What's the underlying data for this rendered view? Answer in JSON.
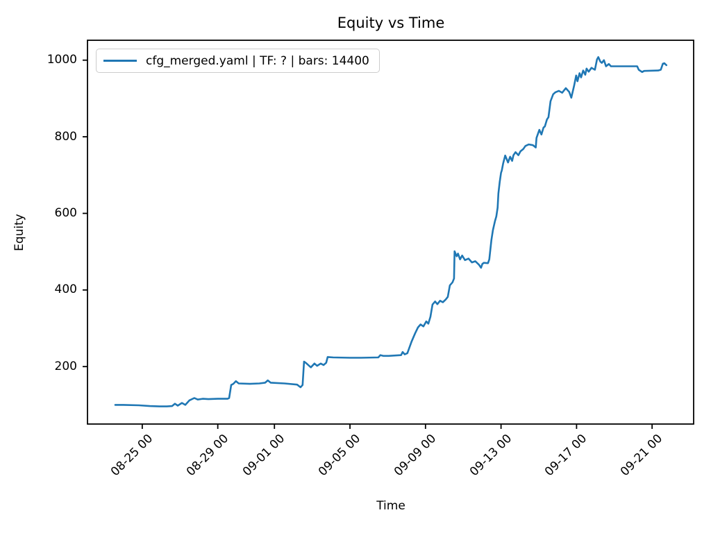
{
  "chart_data": {
    "type": "line",
    "title": "Equity vs Time",
    "xlabel": "Time",
    "ylabel": "Equity",
    "grid": false,
    "legend_position": "upper left",
    "line_color": "#1f77b4",
    "axis_color": "#000000",
    "x_unit": "days since 08-22 00:00",
    "xlim": [
      0.1,
      32.2
    ],
    "ylim": [
      50,
      1052
    ],
    "x_ticks": [
      {
        "x": 3,
        "label": "08-25 00"
      },
      {
        "x": 7,
        "label": "08-29 00"
      },
      {
        "x": 10,
        "label": "09-01 00"
      },
      {
        "x": 14,
        "label": "09-05 00"
      },
      {
        "x": 18,
        "label": "09-09 00"
      },
      {
        "x": 22,
        "label": "09-13 00"
      },
      {
        "x": 26,
        "label": "09-17 00"
      },
      {
        "x": 30,
        "label": "09-21 00"
      }
    ],
    "y_ticks": [
      {
        "v": 200,
        "label": "200"
      },
      {
        "v": 400,
        "label": "400"
      },
      {
        "v": 600,
        "label": "600"
      },
      {
        "v": 800,
        "label": "800"
      },
      {
        "v": 1000,
        "label": "1000"
      }
    ],
    "series": [
      {
        "name": "cfg_merged.yaml | TF: ? | bars: 14400",
        "points": [
          [
            1.57,
            100
          ],
          [
            2.0,
            100
          ],
          [
            2.82,
            99
          ],
          [
            3.4,
            97
          ],
          [
            3.92,
            96
          ],
          [
            4.3,
            96
          ],
          [
            4.58,
            97
          ],
          [
            4.73,
            103
          ],
          [
            4.88,
            98
          ],
          [
            5.1,
            105
          ],
          [
            5.28,
            100
          ],
          [
            5.5,
            112
          ],
          [
            5.76,
            118
          ],
          [
            5.94,
            114
          ],
          [
            6.2,
            116
          ],
          [
            6.5,
            115
          ],
          [
            7.0,
            116
          ],
          [
            7.52,
            116
          ],
          [
            7.6,
            118
          ],
          [
            7.71,
            152
          ],
          [
            7.82,
            155
          ],
          [
            7.96,
            162
          ],
          [
            8.11,
            156
          ],
          [
            8.7,
            155
          ],
          [
            9.2,
            156
          ],
          [
            9.51,
            158
          ],
          [
            9.65,
            164
          ],
          [
            9.8,
            158
          ],
          [
            10.54,
            156
          ],
          [
            11.2,
            153
          ],
          [
            11.38,
            146
          ],
          [
            11.49,
            152
          ],
          [
            11.57,
            213
          ],
          [
            11.68,
            209
          ],
          [
            11.93,
            198
          ],
          [
            12.12,
            208
          ],
          [
            12.26,
            202
          ],
          [
            12.45,
            208
          ],
          [
            12.6,
            204
          ],
          [
            12.74,
            210
          ],
          [
            12.82,
            225
          ],
          [
            13.11,
            224
          ],
          [
            14.0,
            223
          ],
          [
            14.58,
            223
          ],
          [
            15.5,
            224
          ],
          [
            15.61,
            230
          ],
          [
            15.76,
            228
          ],
          [
            16.05,
            228
          ],
          [
            16.71,
            230
          ],
          [
            16.79,
            238
          ],
          [
            16.9,
            232
          ],
          [
            17.04,
            235
          ],
          [
            17.26,
            265
          ],
          [
            17.45,
            287
          ],
          [
            17.6,
            302
          ],
          [
            17.74,
            310
          ],
          [
            17.89,
            305
          ],
          [
            18.04,
            318
          ],
          [
            18.15,
            312
          ],
          [
            18.26,
            330
          ],
          [
            18.37,
            362
          ],
          [
            18.51,
            370
          ],
          [
            18.63,
            363
          ],
          [
            18.77,
            372
          ],
          [
            18.92,
            368
          ],
          [
            19.07,
            375
          ],
          [
            19.18,
            382
          ],
          [
            19.29,
            412
          ],
          [
            19.43,
            420
          ],
          [
            19.51,
            430
          ],
          [
            19.54,
            501
          ],
          [
            19.65,
            488
          ],
          [
            19.72,
            495
          ],
          [
            19.83,
            480
          ],
          [
            19.94,
            490
          ],
          [
            20.09,
            478
          ],
          [
            20.28,
            482
          ],
          [
            20.46,
            472
          ],
          [
            20.64,
            475
          ],
          [
            20.83,
            466
          ],
          [
            20.94,
            458
          ],
          [
            21.01,
            468
          ],
          [
            21.09,
            471
          ],
          [
            21.31,
            470
          ],
          [
            21.38,
            480
          ],
          [
            21.49,
            530
          ],
          [
            21.57,
            556
          ],
          [
            21.68,
            580
          ],
          [
            21.75,
            592
          ],
          [
            21.82,
            615
          ],
          [
            21.86,
            652
          ],
          [
            21.93,
            682
          ],
          [
            22.0,
            706
          ],
          [
            22.04,
            712
          ],
          [
            22.11,
            730
          ],
          [
            22.22,
            751
          ],
          [
            22.37,
            733
          ],
          [
            22.48,
            748
          ],
          [
            22.59,
            737
          ],
          [
            22.66,
            752
          ],
          [
            22.77,
            760
          ],
          [
            22.92,
            752
          ],
          [
            23.03,
            762
          ],
          [
            23.18,
            768
          ],
          [
            23.29,
            776
          ],
          [
            23.47,
            780
          ],
          [
            23.69,
            778
          ],
          [
            23.84,
            772
          ],
          [
            23.88,
            797
          ],
          [
            24.03,
            818
          ],
          [
            24.14,
            806
          ],
          [
            24.25,
            824
          ],
          [
            24.32,
            827
          ],
          [
            24.43,
            845
          ],
          [
            24.51,
            851
          ],
          [
            24.62,
            893
          ],
          [
            24.76,
            911
          ],
          [
            24.87,
            916
          ],
          [
            25.06,
            920
          ],
          [
            25.24,
            915
          ],
          [
            25.43,
            927
          ],
          [
            25.61,
            917
          ],
          [
            25.72,
            902
          ],
          [
            25.87,
            933
          ],
          [
            25.98,
            960
          ],
          [
            26.05,
            945
          ],
          [
            26.16,
            966
          ],
          [
            26.24,
            955
          ],
          [
            26.35,
            973
          ],
          [
            26.46,
            962
          ],
          [
            26.53,
            978
          ],
          [
            26.64,
            970
          ],
          [
            26.79,
            980
          ],
          [
            26.97,
            975
          ],
          [
            27.08,
            1002
          ],
          [
            27.15,
            1008
          ],
          [
            27.26,
            996
          ],
          [
            27.34,
            993
          ],
          [
            27.45,
            1000
          ],
          [
            27.56,
            984
          ],
          [
            27.71,
            990
          ],
          [
            27.82,
            984
          ],
          [
            29.21,
            984
          ],
          [
            29.29,
            975
          ],
          [
            29.47,
            969
          ],
          [
            29.58,
            972
          ],
          [
            30.32,
            973
          ],
          [
            30.46,
            975
          ],
          [
            30.57,
            991
          ],
          [
            30.65,
            992
          ],
          [
            30.76,
            987
          ]
        ]
      }
    ]
  }
}
